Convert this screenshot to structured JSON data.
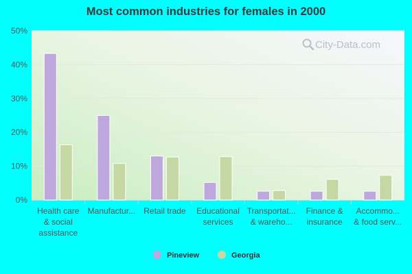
{
  "chart_data": {
    "type": "bar",
    "title": "Most common industries for females in 2000",
    "xlabel": "",
    "ylabel": "",
    "ylim": [
      0,
      50
    ],
    "yticks": [
      0,
      10,
      20,
      30,
      40,
      50
    ],
    "ytick_labels": [
      "0%",
      "10%",
      "20%",
      "30%",
      "40%",
      "50%"
    ],
    "categories": [
      [
        "Health care",
        "& social",
        "assistance"
      ],
      [
        "Manufactur..."
      ],
      [
        "Retail trade"
      ],
      [
        "Educational",
        "services"
      ],
      [
        "Transportat...",
        "& wareho..."
      ],
      [
        "Finance &",
        "insurance"
      ],
      [
        "Accommo...",
        "& food serv..."
      ]
    ],
    "series": [
      {
        "name": "Pineview",
        "color": "#bea7dc",
        "values": [
          43.3,
          25.0,
          13.0,
          5.2,
          2.6,
          2.6,
          2.6
        ]
      },
      {
        "name": "Georgia",
        "color": "#c5d7a3",
        "values": [
          16.3,
          10.8,
          12.7,
          12.8,
          2.8,
          6.1,
          7.3
        ]
      }
    ],
    "legend_position": "bottom",
    "grid": true
  },
  "watermark": {
    "text": "City-Data.com",
    "icon": "magnifier-icon"
  }
}
